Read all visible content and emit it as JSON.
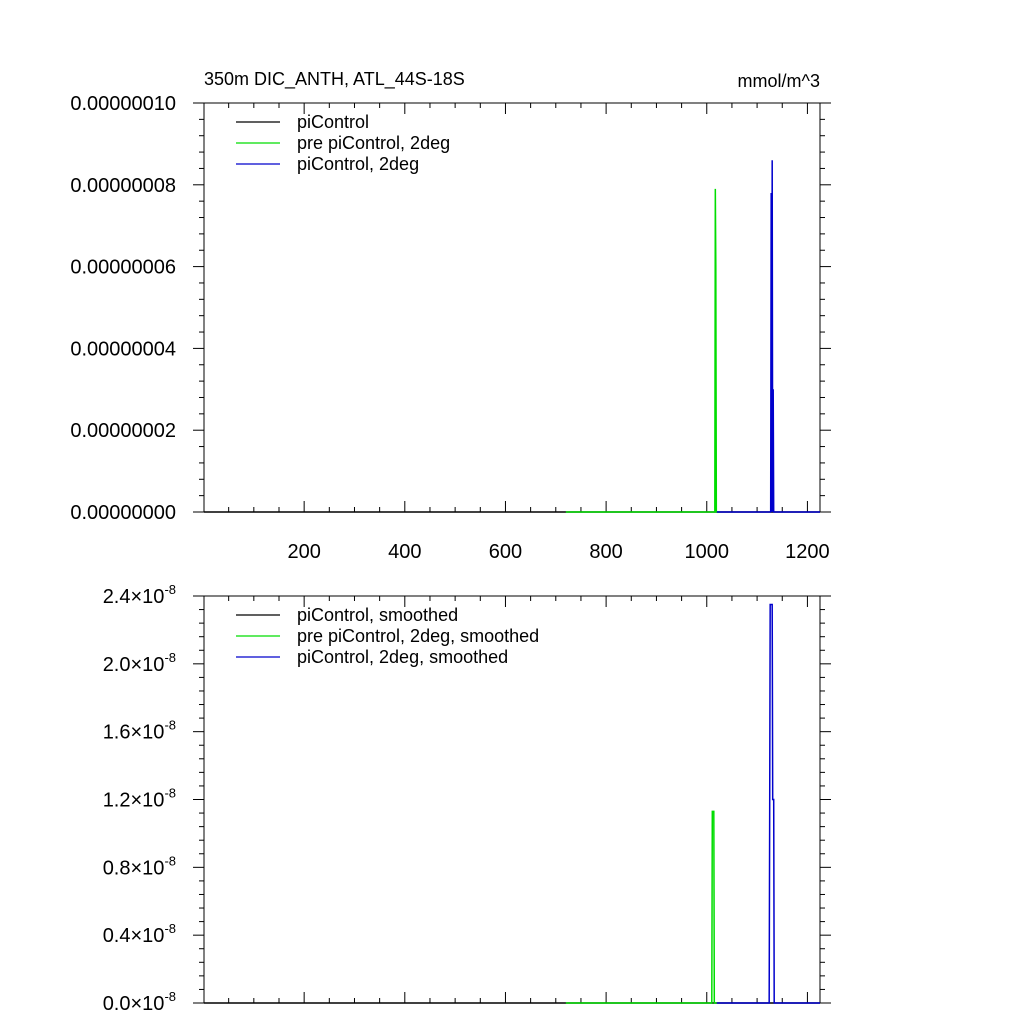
{
  "chart_data": [
    {
      "type": "line",
      "title": "350m DIC_ANTH, ATL_44S-18S",
      "units": "mmol/m^3",
      "xlim": [
        1,
        1225
      ],
      "ylim": [
        0,
        1e-07
      ],
      "xticks": [
        200,
        400,
        600,
        800,
        1000,
        1200
      ],
      "xtick_labels": [
        "200",
        "400",
        "600",
        "800",
        "1000",
        "1200"
      ],
      "yticks": [
        0,
        2e-08,
        4e-08,
        6e-08,
        8e-08,
        1e-07
      ],
      "ytick_labels": [
        "0.00000000",
        "0.00000002",
        "0.00000004",
        "0.00000006",
        "0.00000008",
        "0.00000010"
      ],
      "grid": false,
      "legend_position": "top-left",
      "series": [
        {
          "name": "piControl",
          "color": "#000000",
          "x": [
            1,
            1225
          ],
          "y": [
            0,
            0
          ]
        },
        {
          "name": "pre piControl, 2deg",
          "color": "#00dd00",
          "x": [
            720,
            1016,
            1017,
            1018,
            1019,
            1025
          ],
          "y": [
            0,
            0,
            7.9e-08,
            6e-08,
            0,
            0
          ]
        },
        {
          "name": "piControl, 2deg",
          "color": "#0000cc",
          "x": [
            1020,
            1127,
            1128,
            1129,
            1130,
            1131,
            1132,
            1133,
            1200,
            1225
          ],
          "y": [
            0,
            0,
            7.8e-08,
            0,
            8.6e-08,
            0,
            3e-08,
            0,
            0,
            0
          ]
        }
      ]
    },
    {
      "type": "line",
      "title": "",
      "xlim": [
        1,
        1225
      ],
      "ylim": [
        0,
        2.4e-08
      ],
      "xticks": [
        200,
        400,
        600,
        800,
        1000,
        1200
      ],
      "yticks": [
        0,
        4e-09,
        8e-09,
        1.2e-08,
        1.6e-08,
        2e-08,
        2.4e-08
      ],
      "ytick_mantissas": [
        "0.0",
        "0.4",
        "0.8",
        "1.2",
        "1.6",
        "2.0",
        "2.4"
      ],
      "ytick_times": "×10",
      "ytick_exponent": "-8",
      "grid": false,
      "legend_position": "top-left",
      "series": [
        {
          "name": "piControl, smoothed",
          "color": "#000000",
          "x": [
            1,
            1225
          ],
          "y": [
            0,
            0
          ]
        },
        {
          "name": "pre piControl, 2deg, smoothed",
          "color": "#00dd00",
          "x": [
            720,
            1010,
            1011,
            1014,
            1015,
            1020
          ],
          "y": [
            0,
            0,
            1.13e-08,
            1.13e-08,
            0,
            0
          ]
        },
        {
          "name": "piControl, 2deg, smoothed",
          "color": "#0000cc",
          "x": [
            1020,
            1124,
            1125,
            1126,
            1130,
            1131,
            1133,
            1134,
            1200,
            1225
          ],
          "y": [
            0,
            0,
            1.1e-08,
            2.35e-08,
            2.35e-08,
            1.2e-08,
            1.2e-08,
            0,
            0,
            0
          ]
        }
      ]
    }
  ]
}
